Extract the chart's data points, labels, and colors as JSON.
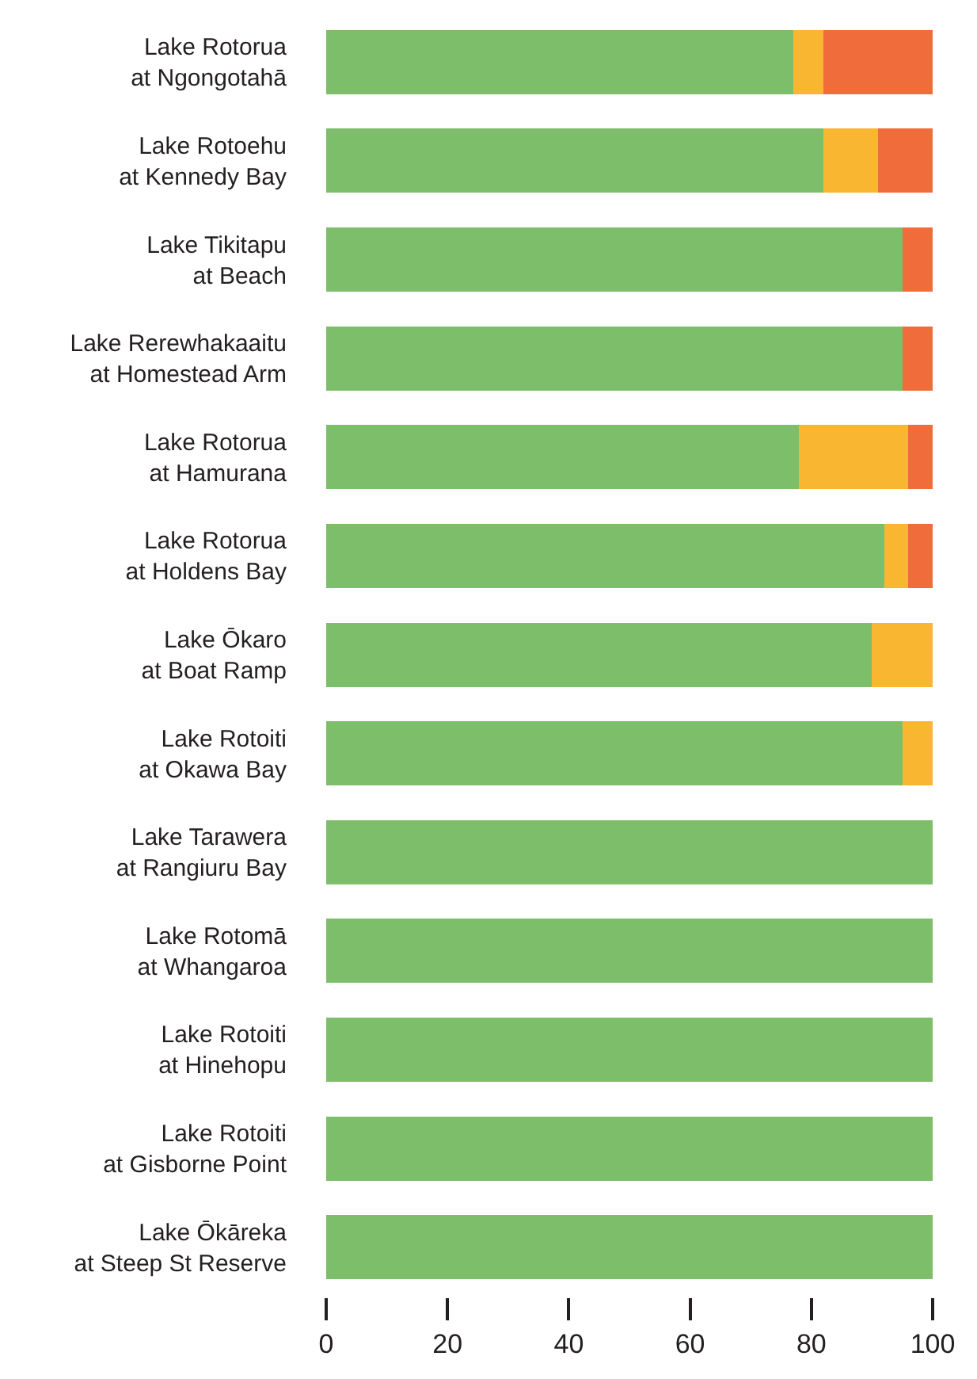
{
  "chart_data": {
    "type": "bar",
    "orientation": "horizontal",
    "stacked": true,
    "categories": [
      "Lake Rotorua\nat Ngongotahā",
      "Lake Rotoehu\nat Kennedy Bay",
      "Lake Tikitapu\nat Beach",
      "Lake Rerewhakaaitu\nat Homestead Arm",
      "Lake Rotorua\nat Hamurana",
      "Lake Rotorua\nat Holdens Bay",
      "Lake Ōkaro\nat Boat Ramp",
      "Lake Rotoiti\nat Okawa Bay",
      "Lake Tarawera\nat Rangiuru Bay",
      "Lake Rotomā\nat Whangaroa",
      "Lake Rotoiti\nat Hinehopu",
      "Lake Rotoiti\nat Gisborne Point",
      "Lake Ōkāreka\nat Steep St Reserve"
    ],
    "series": [
      {
        "color": "#7dbe6a",
        "values": [
          77,
          82,
          95,
          95,
          78,
          92,
          90,
          95,
          100,
          100,
          100,
          100,
          100
        ]
      },
      {
        "color": "#f9b731",
        "values": [
          5,
          9,
          0,
          0,
          18,
          4,
          10,
          5,
          0,
          0,
          0,
          0,
          0
        ]
      },
      {
        "color": "#f06c3a",
        "values": [
          18,
          9,
          5,
          5,
          4,
          4,
          0,
          0,
          0,
          0,
          0,
          0,
          0
        ]
      }
    ],
    "xlim": [
      0,
      100
    ],
    "xticks": [
      0,
      20,
      40,
      60,
      80,
      100
    ]
  }
}
